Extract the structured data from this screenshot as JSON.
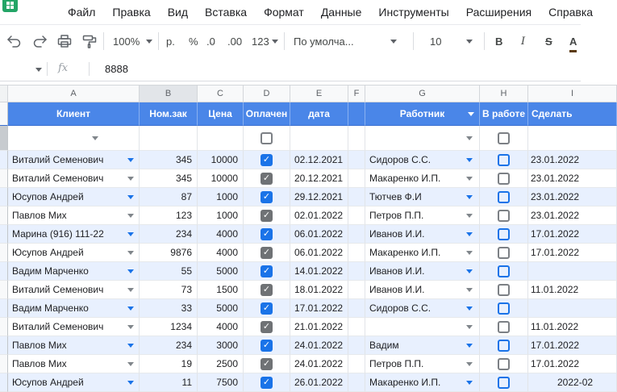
{
  "menu_bar": {
    "items": [
      "Файл",
      "Правка",
      "Вид",
      "Вставка",
      "Формат",
      "Данные",
      "Инструменты",
      "Расширения",
      "Справка"
    ]
  },
  "toolbar": {
    "zoom": "100%",
    "currency": "р.",
    "percent": "%",
    "decrease_decimals": ".0",
    "increase_decimals": ".00",
    "more_formats": "123",
    "font_name": "По умолча...",
    "font_size": "10",
    "bold": "B",
    "italic": "I",
    "strikethrough": "S",
    "text_color": "A"
  },
  "formula_bar": {
    "fx": "fx",
    "value": "8888"
  },
  "sheet": {
    "column_letters": [
      "A",
      "B",
      "C",
      "D",
      "E",
      "F",
      "G",
      "H",
      "I"
    ],
    "selected_column": "B",
    "header": {
      "client": "Клиент",
      "order_no": "Ном.зак",
      "price": "Цена",
      "paid": "Оплачен",
      "date": "дата",
      "worker": "Работник",
      "in_progress": "В работе",
      "todo": "Сделать"
    },
    "rows": [
      {
        "client": "Виталий Семенович",
        "order": "345",
        "price": "10000",
        "paid": true,
        "date": "02.12.2021",
        "worker": "Сидоров С.С.",
        "todo": "23.01.2022"
      },
      {
        "client": "Виталий Семенович",
        "order": "345",
        "price": "10000",
        "paid": true,
        "date": "20.12.2021",
        "worker": "Макаренко И.П.",
        "todo": "23.01.2022"
      },
      {
        "client": "Юсупов Андрей",
        "order": "87",
        "price": "1000",
        "paid": true,
        "date": "29.12.2021",
        "worker": "Тютчев Ф.И",
        "todo": "23.01.2022"
      },
      {
        "client": "Павлов Мих",
        "order": "123",
        "price": "1000",
        "paid": true,
        "date": "02.01.2022",
        "worker": "Петров П.П.",
        "todo": "23.01.2022"
      },
      {
        "client": "Марина (916) 111-22",
        "order": "234",
        "price": "4000",
        "paid": true,
        "date": "06.01.2022",
        "worker": "Иванов И.И.",
        "todo": "17.01.2022"
      },
      {
        "client": "Юсупов Андрей",
        "order": "9876",
        "price": "4000",
        "paid": true,
        "date": "06.01.2022",
        "worker": "Макаренко И.П.",
        "todo": "17.01.2022"
      },
      {
        "client": "Вадим Марченко",
        "order": "55",
        "price": "5000",
        "paid": true,
        "date": "14.01.2022",
        "worker": "Иванов И.И.",
        "todo": ""
      },
      {
        "client": "Виталий Семенович",
        "order": "73",
        "price": "1500",
        "paid": true,
        "date": "18.01.2022",
        "worker": "Иванов И.И.",
        "todo": "11.01.2022"
      },
      {
        "client": "Вадим Марченко",
        "order": "33",
        "price": "5000",
        "paid": true,
        "date": "17.01.2022",
        "worker": "Сидоров С.С.",
        "todo": ""
      },
      {
        "client": "Виталий Семенович",
        "order": "1234",
        "price": "4000",
        "paid": true,
        "date": "21.01.2022",
        "worker": "",
        "todo": "11.01.2022"
      },
      {
        "client": "Павлов Мих",
        "order": "234",
        "price": "3000",
        "paid": true,
        "date": "24.01.2022",
        "worker": "Вадим",
        "todo": "17.01.2022"
      },
      {
        "client": "Павлов Мих",
        "order": "19",
        "price": "2500",
        "paid": true,
        "date": "24.01.2022",
        "worker": "Петров П.П.",
        "todo": "17.01.2022"
      },
      {
        "client": "Юсупов Андрей",
        "order": "11",
        "price": "7500",
        "paid": true,
        "date": "26.01.2022",
        "worker": "Макаренко И.П.",
        "todo": "2022-02",
        "todo_align": "right"
      }
    ]
  },
  "colors": {
    "band_blue": "#4a86e8",
    "accent_blue": "#1a73e8",
    "row_tint": "#e8f0fe",
    "date_orange": "#eda33c",
    "checked_grey": "#6f7275",
    "green_logo": "#23a566"
  }
}
